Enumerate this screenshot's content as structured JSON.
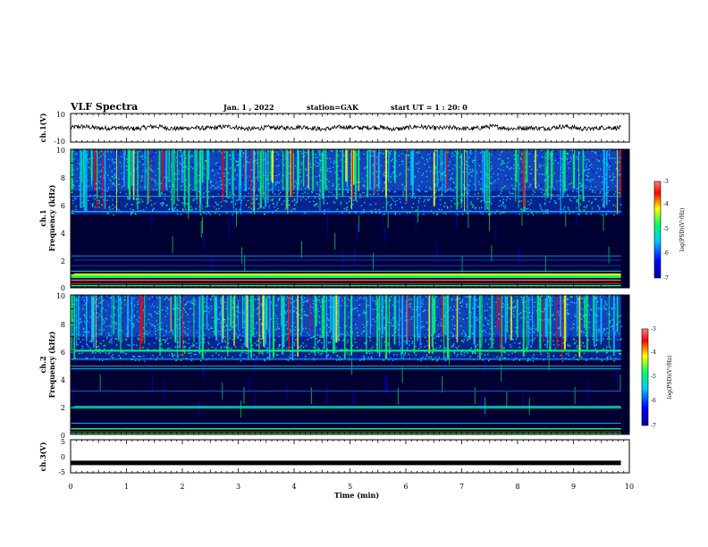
{
  "header": {
    "title": "VLF Spectra",
    "date": "Jan. 1 , 2022",
    "station": "station=GAK",
    "start": "start UT =  1 : 20: 0"
  },
  "colors": {
    "background": "#000033",
    "waveform": "#000000",
    "colormap": [
      "#0000a0",
      "#0000ff",
      "#00c8ff",
      "#00ff66",
      "#ffff00",
      "#ff0000",
      "#ff8080"
    ]
  },
  "chart_data": [
    {
      "type": "line",
      "name": "ch1-waveform",
      "ylabel": "ch.1(V)",
      "ylim": [
        -10,
        10
      ],
      "yticks": [
        "10",
        "-10"
      ],
      "xlim": [
        0,
        10
      ]
    },
    {
      "type": "heatmap",
      "name": "ch1-spectrogram",
      "ylabel": "ch.1",
      "ylabel2": "Frequency (kHz)",
      "ylim": [
        0,
        10
      ],
      "yticks": [
        "0",
        "2",
        "4",
        "6",
        "8",
        "10"
      ],
      "xlim": [
        0,
        10
      ],
      "colorbar": {
        "label": "log(PSD)(V²/Hz)",
        "range": [
          -7,
          -3
        ],
        "ticks": [
          "-3",
          "-4",
          "-5",
          "-6",
          "-7"
        ]
      }
    },
    {
      "type": "heatmap",
      "name": "ch2-spectrogram",
      "ylabel": "ch.2",
      "ylabel2": "Frequency (kHz)",
      "ylim": [
        0,
        10
      ],
      "yticks": [
        "0",
        "2",
        "4",
        "6",
        "8",
        "10"
      ],
      "xlim": [
        0,
        10
      ],
      "colorbar": {
        "label": "log(PSD)(V²/Hz)",
        "range": [
          -7,
          -3
        ],
        "ticks": [
          "-3",
          "-4",
          "-5",
          "-6",
          "-7"
        ]
      }
    },
    {
      "type": "line",
      "name": "ch3-waveform",
      "ylabel": "ch.3(V)",
      "ylim": [
        -5,
        5
      ],
      "yticks": [
        "5",
        "0",
        "-5"
      ],
      "y": [
        -2,
        -2
      ],
      "x": [
        0,
        9.85
      ],
      "xlim": [
        0,
        10
      ],
      "xlabel": "Time (min)",
      "xticks": [
        "0",
        "1",
        "2",
        "3",
        "4",
        "5",
        "6",
        "7",
        "8",
        "9",
        "10"
      ]
    }
  ]
}
